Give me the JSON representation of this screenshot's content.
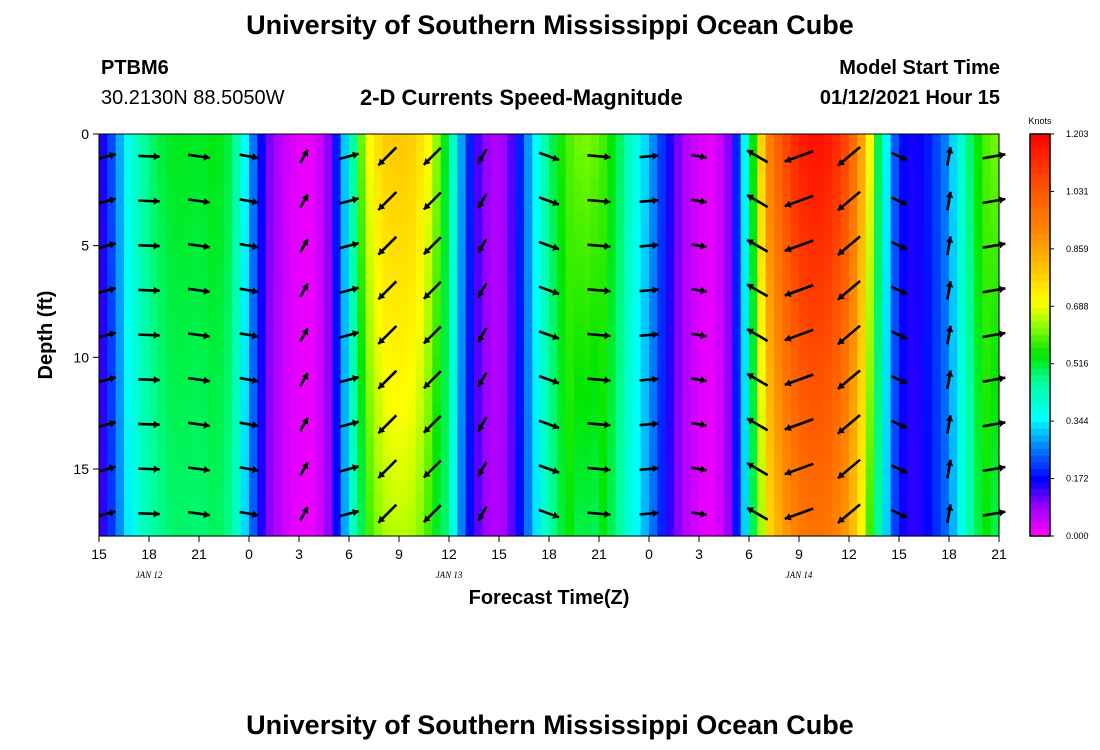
{
  "header": {
    "title_top": "University of Southern Mississippi Ocean Cube",
    "station": "PTBM6",
    "location": "30.2130N 88.5050W",
    "plot_title": "2-D Currents Speed-Magnitude",
    "model_label": "Model Start Time",
    "model_time": "01/12/2021 Hour 15",
    "title_bottom": "University of Southern Mississippi Ocean Cube"
  },
  "colorbar": {
    "unit": "Knots",
    "labels": [
      "1.203",
      "1.031",
      "0.859",
      "0.688",
      "0.516",
      "0.344",
      "0.172",
      "0.000"
    ],
    "min": 0,
    "max": 1.203
  },
  "chart_data": {
    "type": "heatmap",
    "xlabel": "Forecast Time(Z)",
    "ylabel": "Depth (ft)",
    "x_ticks": [
      "15",
      "18",
      "21",
      "0",
      "3",
      "6",
      "9",
      "12",
      "15",
      "18",
      "21",
      "0",
      "3",
      "6",
      "9",
      "12",
      "15",
      "18",
      "21"
    ],
    "date_labels": [
      {
        "label": "JAN 12",
        "tick_index": 1
      },
      {
        "label": "JAN 13",
        "tick_index": 7
      },
      {
        "label": "JAN 14",
        "tick_index": 14
      }
    ],
    "y_ticks": [
      "0",
      "5",
      "10",
      "15"
    ],
    "ylim": [
      0,
      18
    ],
    "xlim_hours": [
      0,
      54
    ],
    "speed_anchors": [
      {
        "h": 0,
        "s": 0.12
      },
      {
        "h": 1,
        "s": 0.26
      },
      {
        "h": 2,
        "s": 0.4
      },
      {
        "h": 3,
        "s": 0.48
      },
      {
        "h": 4,
        "s": 0.52
      },
      {
        "h": 5,
        "s": 0.53
      },
      {
        "h": 6,
        "s": 0.52
      },
      {
        "h": 7,
        "s": 0.54
      },
      {
        "h": 8,
        "s": 0.5
      },
      {
        "h": 9,
        "s": 0.3
      },
      {
        "h": 10,
        "s": 0.12
      },
      {
        "h": 11,
        "s": 0.05
      },
      {
        "h": 12,
        "s": 0.02
      },
      {
        "h": 13,
        "s": 0.02
      },
      {
        "h": 14,
        "s": 0.12
      },
      {
        "h": 15,
        "s": 0.38
      },
      {
        "h": 16,
        "s": 0.68
      },
      {
        "h": 17,
        "s": 0.78
      },
      {
        "h": 18,
        "s": 0.8
      },
      {
        "h": 19,
        "s": 0.78
      },
      {
        "h": 20,
        "s": 0.68
      },
      {
        "h": 21,
        "s": 0.48
      },
      {
        "h": 22,
        "s": 0.22
      },
      {
        "h": 23,
        "s": 0.1
      },
      {
        "h": 24,
        "s": 0.06
      },
      {
        "h": 25,
        "s": 0.15
      },
      {
        "h": 26,
        "s": 0.32
      },
      {
        "h": 27,
        "s": 0.48
      },
      {
        "h": 28,
        "s": 0.58
      },
      {
        "h": 29,
        "s": 0.62
      },
      {
        "h": 30,
        "s": 0.6
      },
      {
        "h": 31,
        "s": 0.52
      },
      {
        "h": 32,
        "s": 0.4
      },
      {
        "h": 33,
        "s": 0.3
      },
      {
        "h": 34,
        "s": 0.18
      },
      {
        "h": 35,
        "s": 0.08
      },
      {
        "h": 36,
        "s": 0.03
      },
      {
        "h": 37,
        "s": 0.02
      },
      {
        "h": 38,
        "s": 0.12
      },
      {
        "h": 39,
        "s": 0.42
      },
      {
        "h": 40,
        "s": 0.9
      },
      {
        "h": 41,
        "s": 1.05
      },
      {
        "h": 42,
        "s": 1.15
      },
      {
        "h": 43,
        "s": 1.18
      },
      {
        "h": 44,
        "s": 1.15
      },
      {
        "h": 45,
        "s": 1.05
      },
      {
        "h": 46,
        "s": 0.8
      },
      {
        "h": 47,
        "s": 0.4
      },
      {
        "h": 48,
        "s": 0.18
      },
      {
        "h": 49,
        "s": 0.15
      },
      {
        "h": 50,
        "s": 0.2
      },
      {
        "h": 51,
        "s": 0.28
      },
      {
        "h": 52,
        "s": 0.45
      },
      {
        "h": 53,
        "s": 0.58
      },
      {
        "h": 54,
        "s": 0.62
      }
    ],
    "arrow_columns": [
      {
        "h": 0.5,
        "dir_deg": 75
      },
      {
        "h": 3,
        "dir_deg": 92
      },
      {
        "h": 6,
        "dir_deg": 98
      },
      {
        "h": 9,
        "dir_deg": 100
      },
      {
        "h": 12.3,
        "dir_deg": 30
      },
      {
        "h": 15,
        "dir_deg": 75
      },
      {
        "h": 17.3,
        "dir_deg": 225
      },
      {
        "h": 20,
        "dir_deg": 225
      },
      {
        "h": 23,
        "dir_deg": 210
      },
      {
        "h": 27,
        "dir_deg": 110
      },
      {
        "h": 30,
        "dir_deg": 95
      },
      {
        "h": 33,
        "dir_deg": 85
      },
      {
        "h": 36,
        "dir_deg": 100
      },
      {
        "h": 39.5,
        "dir_deg": 300
      },
      {
        "h": 42,
        "dir_deg": 250
      },
      {
        "h": 45,
        "dir_deg": 230
      },
      {
        "h": 48,
        "dir_deg": 115
      },
      {
        "h": 51,
        "dir_deg": 10
      },
      {
        "h": 53.7,
        "dir_deg": 80
      }
    ]
  }
}
